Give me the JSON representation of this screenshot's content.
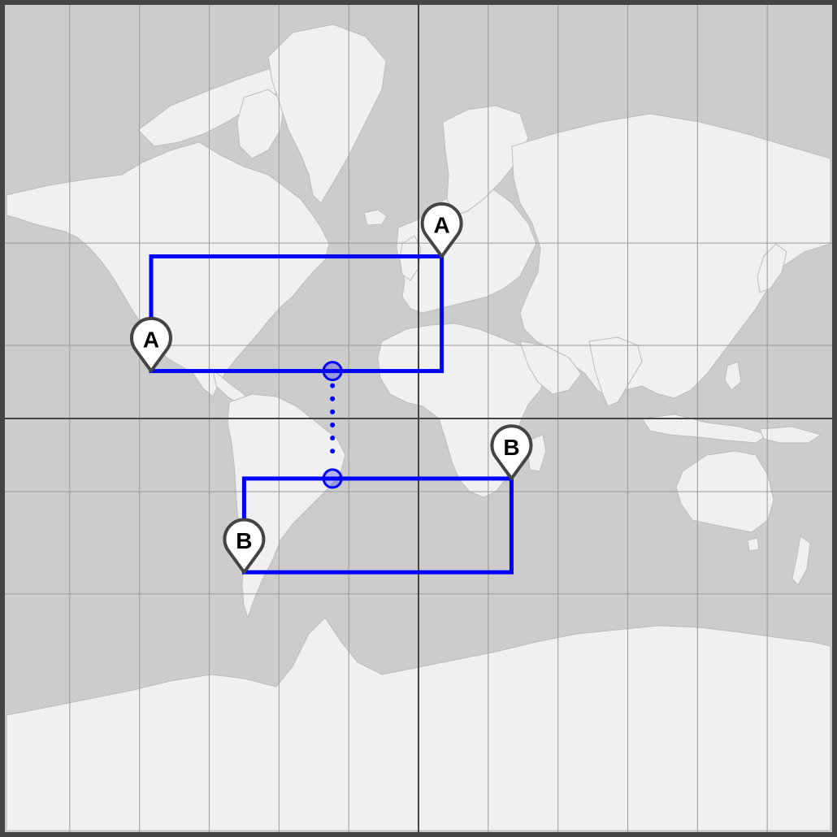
{
  "map": {
    "projection": "mercator",
    "colors": {
      "ocean": "#cccccc",
      "land": "#f0f0f0",
      "border": "#bdbdbd",
      "grid": "#9a9a9a",
      "axis": "#444444",
      "frame": "#444444",
      "box": "#0000ff",
      "pin_fill": "#ffffff",
      "pin_stroke": "#444444"
    }
  },
  "markers": [
    {
      "id": "a-southwest",
      "label": "A",
      "lon": -115,
      "lat": 20
    },
    {
      "id": "a-northeast",
      "label": "A",
      "lon": 10,
      "lat": 57
    },
    {
      "id": "b-southwest",
      "label": "B",
      "lon": -75,
      "lat": -55
    },
    {
      "id": "b-northeast",
      "label": "B",
      "lon": 40,
      "lat": -25
    }
  ],
  "boxes": [
    {
      "id": "box-a",
      "label": "A",
      "west": -115,
      "south": 20,
      "east": 10,
      "north": 57
    },
    {
      "id": "box-b",
      "label": "B",
      "west": -75,
      "south": -55,
      "east": 40,
      "north": -25
    }
  ],
  "connector": {
    "style": "dotted",
    "lon": -37,
    "from_lat": 20,
    "to_lat": -25
  }
}
